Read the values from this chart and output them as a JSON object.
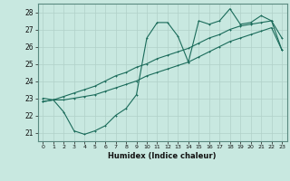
{
  "xlabel": "Humidex (Indice chaleur)",
  "bg_color": "#c8e8e0",
  "grid_color": "#b0d0c8",
  "line_color": "#1a6b5a",
  "xlim": [
    -0.5,
    23.5
  ],
  "ylim": [
    20.5,
    28.5
  ],
  "xticks": [
    0,
    1,
    2,
    3,
    4,
    5,
    6,
    7,
    8,
    9,
    10,
    11,
    12,
    13,
    14,
    15,
    16,
    17,
    18,
    19,
    20,
    21,
    22,
    23
  ],
  "yticks": [
    21,
    22,
    23,
    24,
    25,
    26,
    27,
    28
  ],
  "series1_x": [
    0,
    1,
    2,
    3,
    4,
    5,
    6,
    7,
    8,
    9,
    10,
    11,
    12,
    13,
    14,
    15,
    16,
    17,
    18,
    19,
    20,
    21,
    22,
    23
  ],
  "series1_y": [
    23.0,
    22.9,
    22.2,
    21.1,
    20.9,
    21.1,
    21.4,
    22.0,
    22.4,
    23.2,
    26.5,
    27.4,
    27.4,
    26.6,
    25.1,
    27.5,
    27.3,
    27.5,
    28.2,
    27.3,
    27.4,
    27.8,
    27.5,
    26.5
  ],
  "series2_x": [
    0,
    1,
    2,
    3,
    4,
    5,
    6,
    7,
    8,
    9,
    10,
    11,
    12,
    13,
    14,
    15,
    16,
    17,
    18,
    19,
    20,
    21,
    22,
    23
  ],
  "series2_y": [
    22.8,
    22.9,
    22.9,
    23.0,
    23.1,
    23.2,
    23.4,
    23.6,
    23.8,
    24.0,
    24.3,
    24.5,
    24.7,
    24.9,
    25.1,
    25.4,
    25.7,
    26.0,
    26.3,
    26.5,
    26.7,
    26.9,
    27.1,
    25.8
  ],
  "series3_x": [
    0,
    1,
    2,
    3,
    4,
    5,
    6,
    7,
    8,
    9,
    10,
    11,
    12,
    13,
    14,
    15,
    16,
    17,
    18,
    19,
    20,
    21,
    22,
    23
  ],
  "series3_y": [
    22.8,
    22.9,
    23.1,
    23.3,
    23.5,
    23.7,
    24.0,
    24.3,
    24.5,
    24.8,
    25.0,
    25.3,
    25.5,
    25.7,
    25.9,
    26.2,
    26.5,
    26.7,
    27.0,
    27.2,
    27.3,
    27.4,
    27.5,
    25.8
  ]
}
